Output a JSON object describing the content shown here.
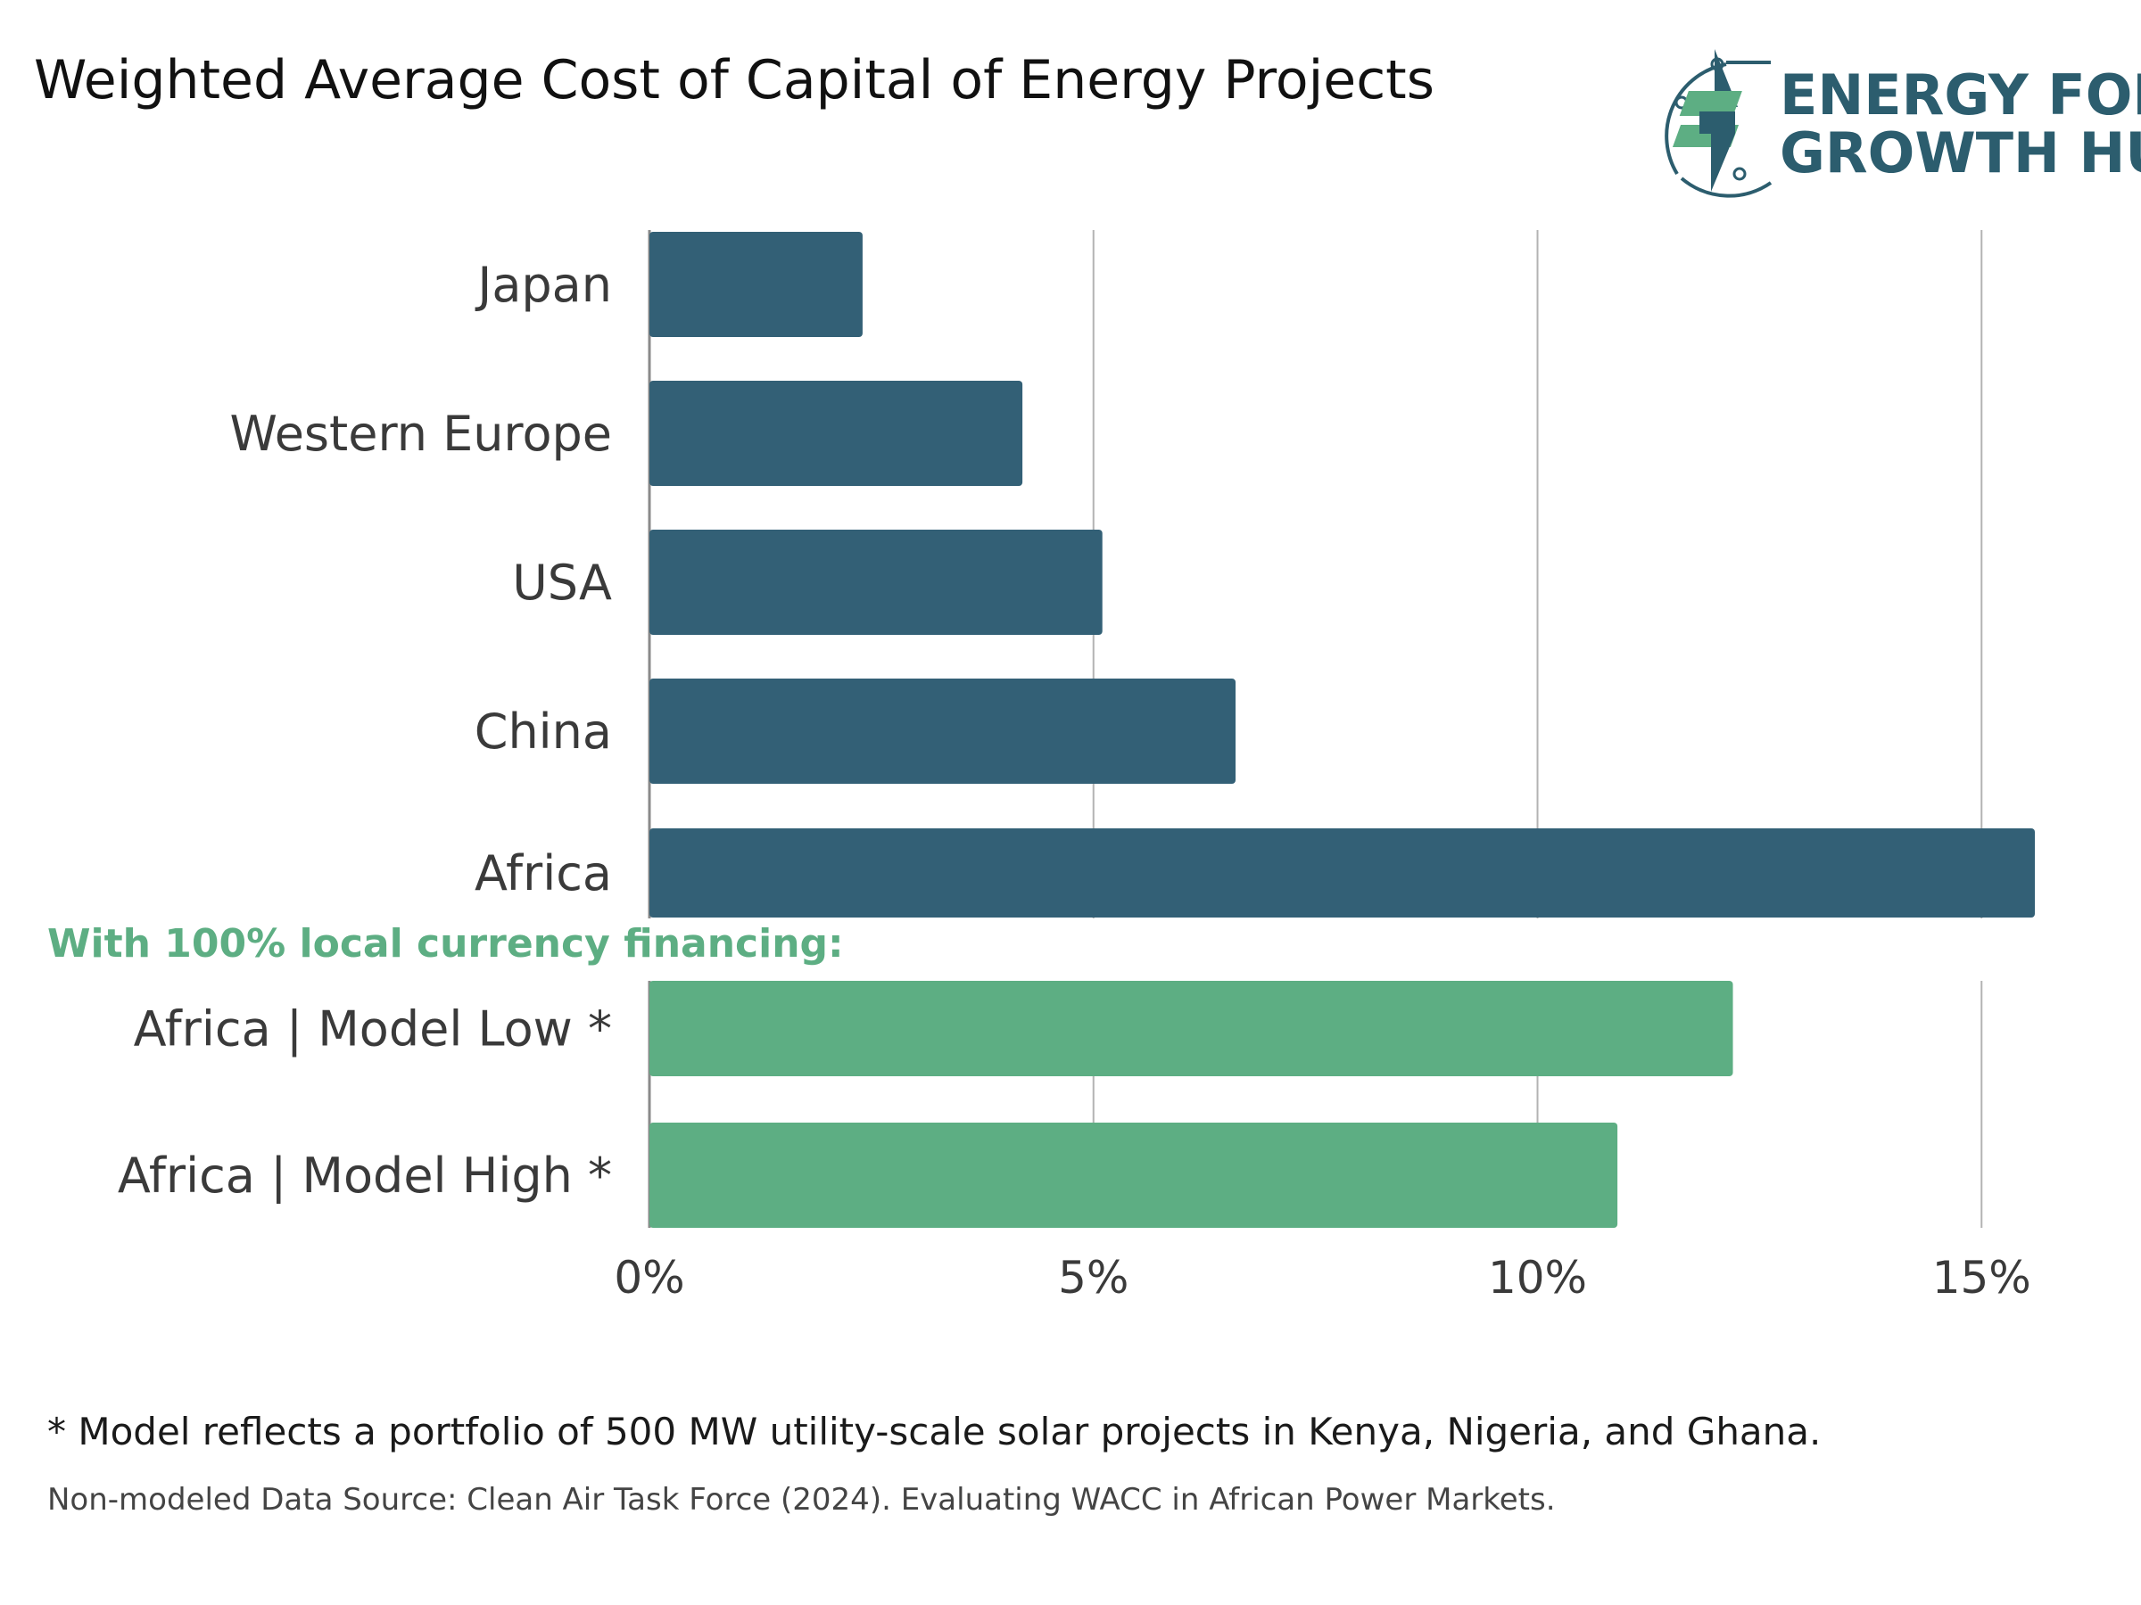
{
  "title": "Weighted Average Cost of Capital of Energy Projects",
  "logo": {
    "line1": "ENERGY FOR",
    "line2": "GROWTH HUB"
  },
  "group_label": "With 100% local currency financing:",
  "footnote": "* Model reflects a portfolio of 500 MW utility-scale solar projects in Kenya, Nigeria, and Ghana.",
  "source": "Non-modeled Data Source: Clean Air Task Force (2024). Evaluating WACC in African Power Markets.",
  "colors": {
    "primary": "#336076",
    "secondary": "#5DAE83",
    "logo_dark": "#2C5D6E",
    "grid": "#b3b3b3"
  },
  "chart_data": {
    "type": "bar",
    "orientation": "horizontal",
    "categories": [
      "Japan",
      "Western Europe",
      "USA",
      "China",
      "Africa",
      "Africa | Model Low *",
      "Africa | Model High *"
    ],
    "values": [
      2.4,
      4.2,
      5.1,
      6.6,
      15.6,
      12.2,
      10.9
    ],
    "bar_colors": [
      "primary",
      "primary",
      "primary",
      "primary",
      "primary",
      "secondary",
      "secondary"
    ],
    "xlim": [
      0,
      15.6
    ],
    "xticks": [
      0,
      5,
      10,
      15
    ],
    "xtick_labels": [
      "0%",
      "5%",
      "10%",
      "15%"
    ],
    "grid": true
  }
}
